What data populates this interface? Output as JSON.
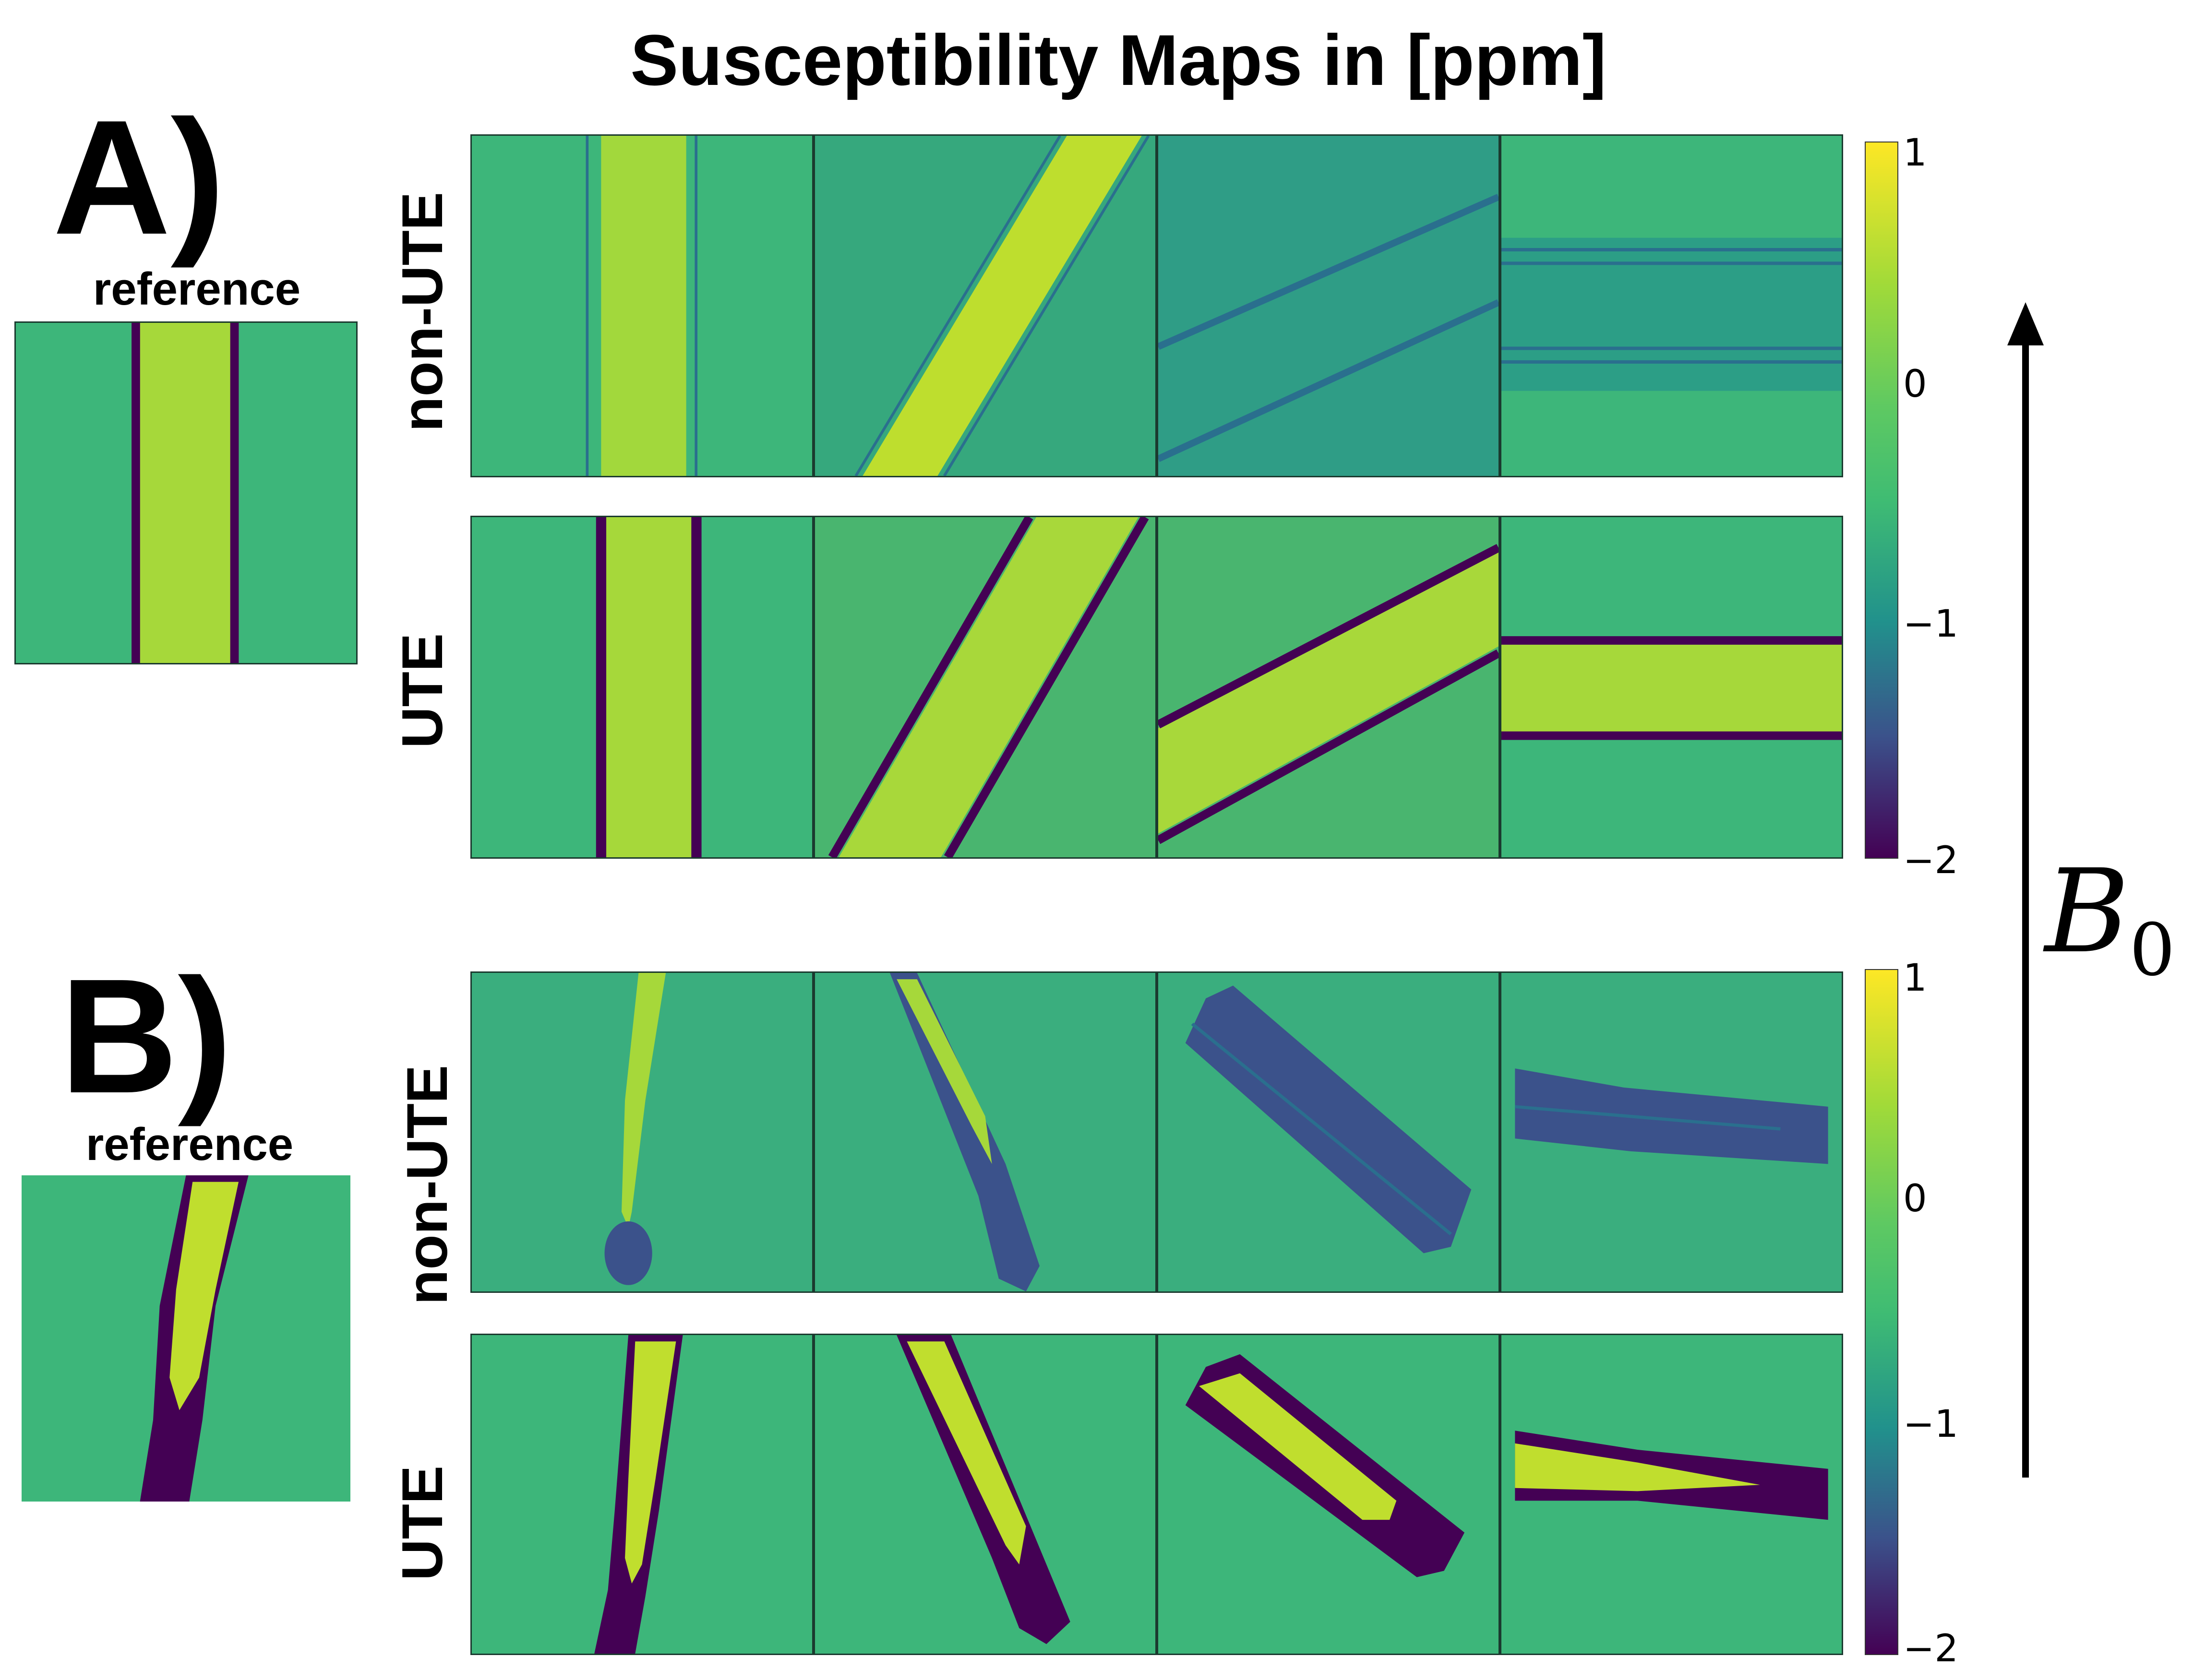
{
  "figure": {
    "title": "Susceptibility Maps in [ppm]",
    "field_label": "B",
    "field_label_subscript": "0"
  },
  "panels": [
    {
      "letter": "A)",
      "reference_label": "reference",
      "rows": [
        {
          "label": "non-UTE",
          "tile_count": 4
        },
        {
          "label": "UTE",
          "tile_count": 4
        }
      ],
      "colorbar": {
        "ticks": [
          "1",
          "0",
          "−1",
          "−2"
        ],
        "range": [
          -2,
          1
        ]
      }
    },
    {
      "letter": "B)",
      "reference_label": "reference",
      "rows": [
        {
          "label": "non-UTE",
          "tile_count": 4
        },
        {
          "label": "UTE",
          "tile_count": 4
        }
      ],
      "colorbar": {
        "ticks": [
          "1",
          "0",
          "−1",
          "−2"
        ],
        "range": [
          -2,
          1
        ]
      }
    }
  ],
  "colors": {
    "background": "#3db67a",
    "high": "#a6d83a",
    "peak": "#d6e02a",
    "low": "#440154",
    "mid_low": "#2a6f8e"
  }
}
